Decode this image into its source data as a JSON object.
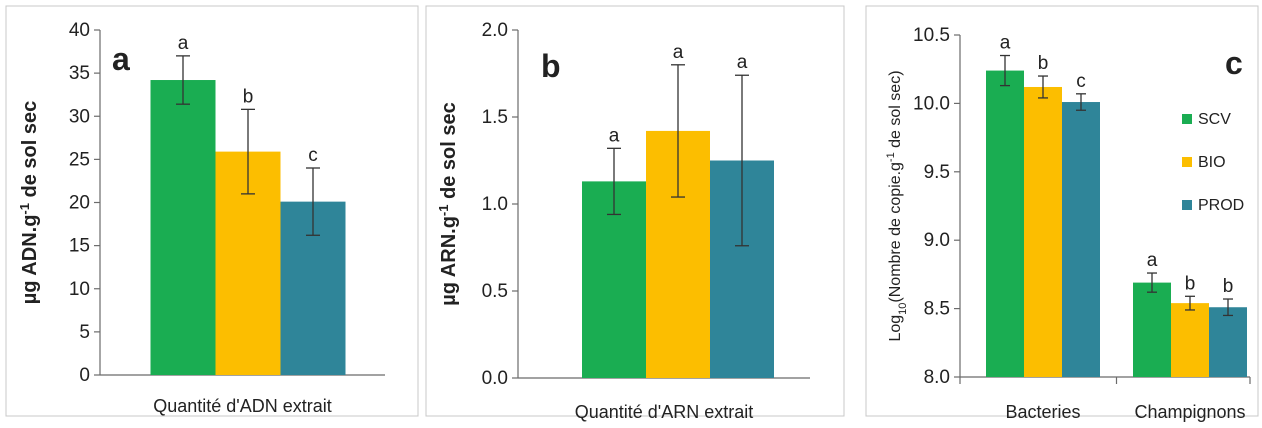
{
  "colors": {
    "SCV": "#1aad52",
    "BIO": "#fcbe00",
    "PROD": "#2f8599"
  },
  "chart_data": [
    {
      "type": "bar",
      "panel_label": "a",
      "ylabel_html": "µg ADN.g<tspan baseline-shift='super' font-size='13'>-1</tspan> de sol sec",
      "xlabel": "Quantité d'ADN extrait",
      "ylim": [
        0,
        40
      ],
      "yticks": [
        "0",
        "5",
        "10",
        "15",
        "20",
        "25",
        "30",
        "35",
        "40"
      ],
      "ytick_values": [
        0,
        5,
        10,
        15,
        20,
        25,
        30,
        35,
        40
      ],
      "categories": [
        ""
      ],
      "series": [
        {
          "key": "SCV",
          "values": [
            34.2
          ],
          "err": [
            2.8
          ],
          "sig": [
            "a"
          ]
        },
        {
          "key": "BIO",
          "values": [
            25.9
          ],
          "err": [
            4.9
          ],
          "sig": [
            "b"
          ]
        },
        {
          "key": "PROD",
          "values": [
            20.1
          ],
          "err": [
            3.9
          ],
          "sig": [
            "c"
          ]
        }
      ]
    },
    {
      "type": "bar",
      "panel_label": "b",
      "ylabel_html": "µg ARN.g<tspan baseline-shift='super' font-size='13'>-1</tspan> de sol sec",
      "xlabel": "Quantité d'ARN extrait",
      "ylim": [
        0,
        2
      ],
      "yticks": [
        "0.0",
        "0.5",
        "1.0",
        "1.5",
        "2.0"
      ],
      "ytick_values": [
        0,
        0.5,
        1.0,
        1.5,
        2.0
      ],
      "categories": [
        ""
      ],
      "series": [
        {
          "key": "SCV",
          "values": [
            1.13
          ],
          "err": [
            0.19
          ],
          "sig": [
            "a"
          ]
        },
        {
          "key": "BIO",
          "values": [
            1.42
          ],
          "err": [
            0.38
          ],
          "sig": [
            "a"
          ]
        },
        {
          "key": "PROD",
          "values": [
            1.25
          ],
          "err": [
            0.49
          ],
          "sig": [
            "a"
          ]
        }
      ]
    },
    {
      "type": "bar",
      "panel_label": "c",
      "ylabel_html": "Log<tspan baseline-shift='sub' font-size='11'>10</tspan>(Nombre de copie.g<tspan baseline-shift='super' font-size='11'>-1</tspan> de sol sec)",
      "xlabel": "",
      "ylim": [
        8.0,
        10.5
      ],
      "yticks": [
        "8.0",
        "8.5",
        "9.0",
        "9.5",
        "10.0",
        "10.5"
      ],
      "ytick_values": [
        8.0,
        8.5,
        9.0,
        9.5,
        10.0,
        10.5
      ],
      "categories": [
        "Bacteries",
        "Champignons"
      ],
      "legend": [
        "SCV",
        "BIO",
        "PROD"
      ],
      "legend_position": "right",
      "series": [
        {
          "key": "SCV",
          "values": [
            10.24,
            8.69
          ],
          "err": [
            0.11,
            0.07
          ],
          "sig": [
            "a",
            "a"
          ]
        },
        {
          "key": "BIO",
          "values": [
            10.12,
            8.54
          ],
          "err": [
            0.08,
            0.05
          ],
          "sig": [
            "b",
            "b"
          ]
        },
        {
          "key": "PROD",
          "values": [
            10.01,
            8.51
          ],
          "err": [
            0.06,
            0.06
          ],
          "sig": [
            "c",
            "b"
          ]
        }
      ]
    }
  ]
}
